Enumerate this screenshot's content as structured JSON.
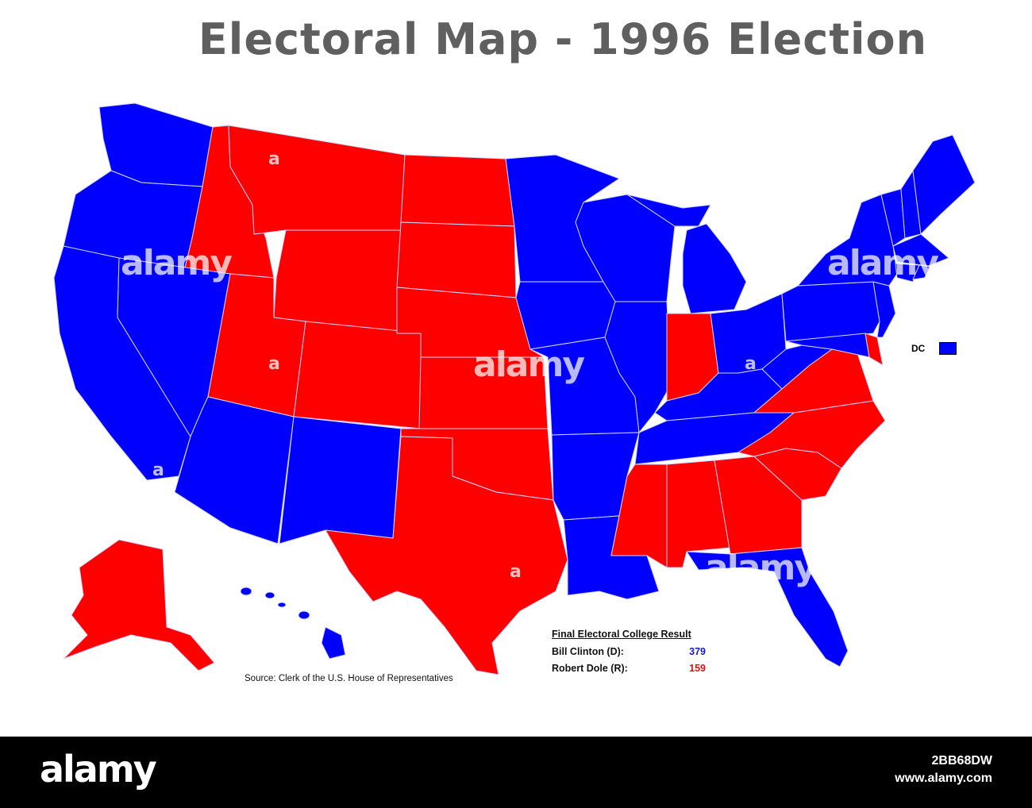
{
  "title": "Electoral Map - 1996 Election",
  "colors": {
    "democrat": "#0000ff",
    "republican": "#ff0000",
    "border": "#c8c8ff"
  },
  "dc": {
    "label": "DC",
    "winner": "D"
  },
  "results": {
    "heading": "Final Electoral College Result",
    "rows": [
      {
        "candidate": "Bill Clinton (D):",
        "votes": "379",
        "party": "D"
      },
      {
        "candidate": "Robert Dole (R):",
        "votes": "159",
        "party": "R"
      }
    ]
  },
  "source": "Source: Clerk of the U.S. House of Representatives",
  "watermark": {
    "text": "alamy",
    "mark": "a"
  },
  "footer": {
    "logo": "alamy",
    "image_id": "2BB68DW",
    "site": "www.alamy.com"
  }
}
